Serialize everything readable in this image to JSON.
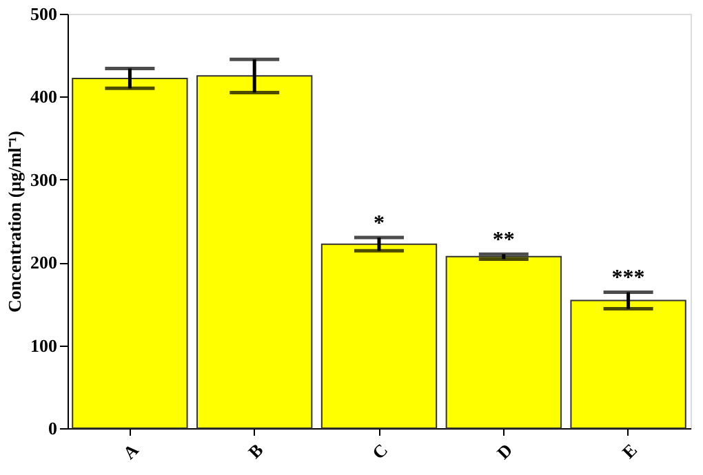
{
  "chart_data": {
    "type": "bar",
    "ylabel": "Concentration (µg/ml⁻¹)",
    "categories": [
      "A",
      "B",
      "C",
      "D",
      "E"
    ],
    "values": [
      422,
      425,
      222,
      207,
      154
    ],
    "errors": [
      12,
      20,
      8,
      3,
      10
    ],
    "color": "#ffff00",
    "ylim": [
      0,
      500
    ],
    "yticks": [
      0,
      100,
      200,
      300,
      400,
      500
    ],
    "grid": false,
    "annotations": [
      {
        "text": "*",
        "x": "C",
        "y": 231
      },
      {
        "text": "**",
        "x": "D",
        "y": 211
      },
      {
        "text": "***",
        "x": "E",
        "y": 165
      }
    ]
  }
}
